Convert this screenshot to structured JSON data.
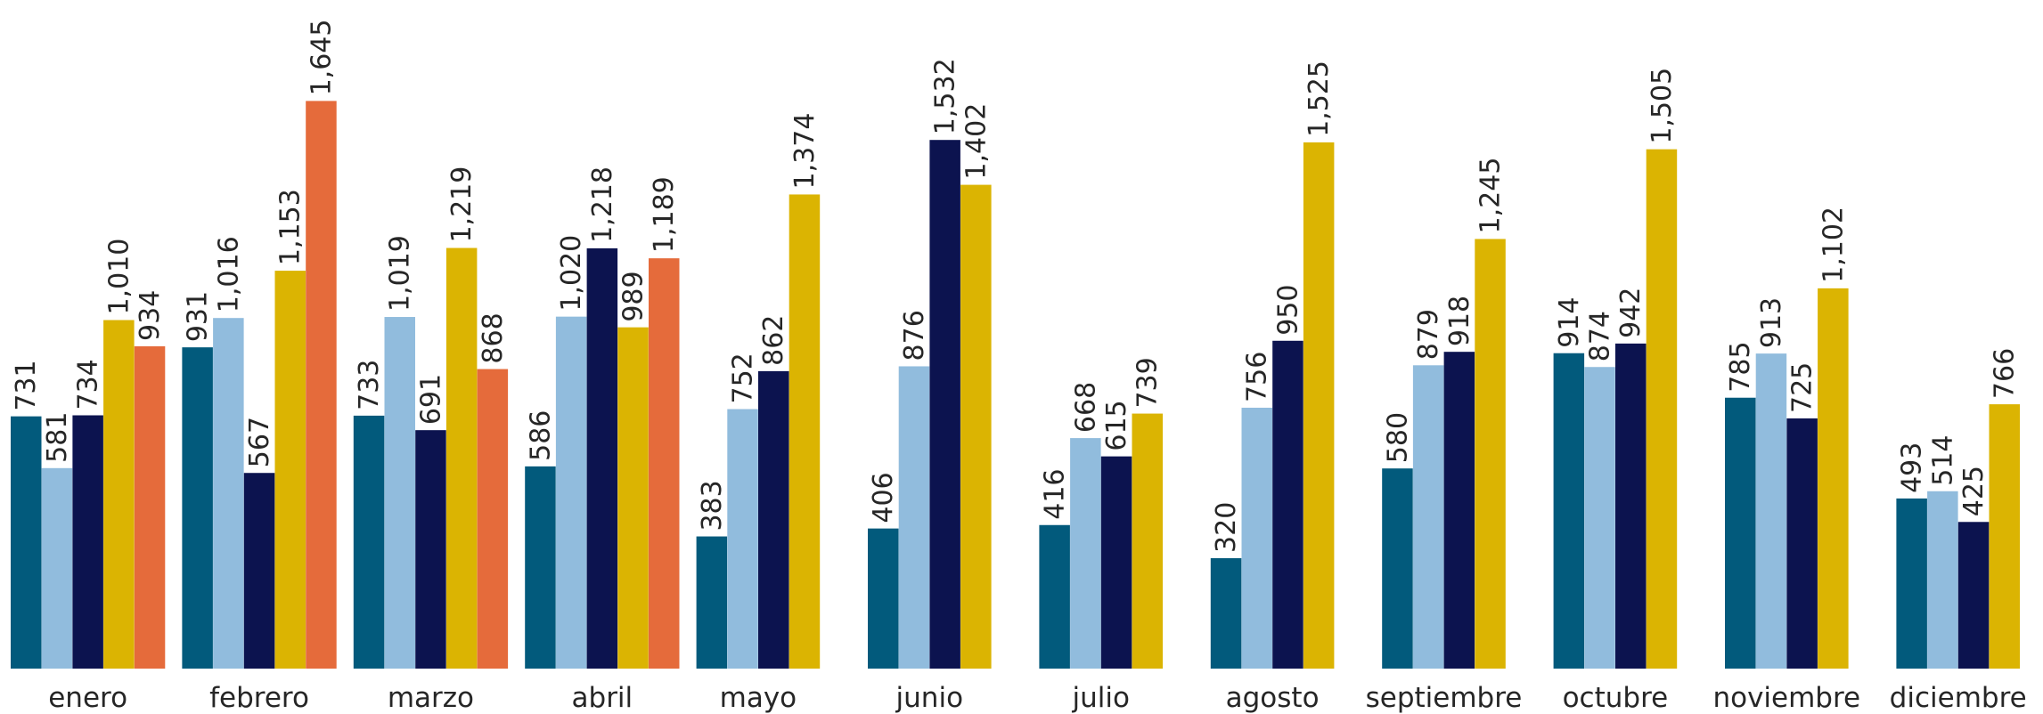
{
  "chart_data": {
    "type": "bar",
    "title": "",
    "xlabel": "",
    "ylabel": "",
    "categories": [
      "enero",
      "febrero",
      "marzo",
      "abril",
      "mayo",
      "junio",
      "julio",
      "agosto",
      "septiembre",
      "octubre",
      "noviembre",
      "diciembre"
    ],
    "ylim": [
      0,
      1700
    ],
    "grid": false,
    "legend": "none",
    "colors": [
      "#025A7C",
      "#91BCDD",
      "#0C134F",
      "#DBB402",
      "#E56B3B"
    ],
    "series": [
      {
        "values": [
          731,
          931,
          733,
          586,
          383,
          406,
          416,
          320,
          580,
          914,
          785,
          493
        ]
      },
      {
        "values": [
          581,
          1016,
          1019,
          1020,
          752,
          876,
          668,
          756,
          879,
          874,
          913,
          514
        ]
      },
      {
        "values": [
          734,
          567,
          691,
          1218,
          862,
          1532,
          615,
          950,
          918,
          942,
          725,
          425
        ]
      },
      {
        "values": [
          1010,
          1153,
          1219,
          989,
          1374,
          1402,
          739,
          1525,
          1245,
          1505,
          1102,
          766
        ]
      },
      {
        "values": [
          934,
          1645,
          868,
          1189,
          null,
          null,
          null,
          null,
          null,
          null,
          null,
          null
        ]
      }
    ]
  }
}
